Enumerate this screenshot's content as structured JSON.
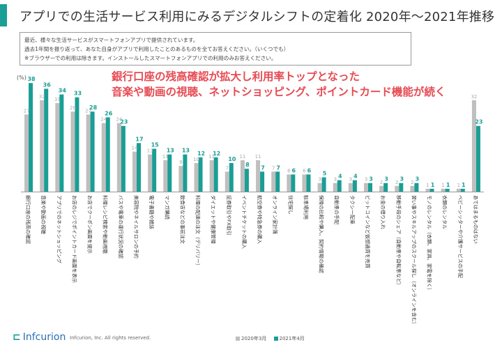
{
  "title": "アプリでの生活サービス利用にみるデジタルシフトの定着化  2020年〜2021年推移",
  "note_lines": [
    "最近、様々な生活サービスがスマートフォンアプリで提供されています。",
    "過去1年間を振り返って、あなた自身がアプリで利用したことのあるものを全てお答えください。（いくつでも）",
    "※ブラウザーでの利用は除きます。インストールしたスマートフォンアプリでの利用のみお答えください。"
  ],
  "headline_lines": [
    "銀行口座の残高確認が拡大し利用率トップとなった",
    "音楽や動画の視聴、ネットショッピング、ポイントカード機能が続く"
  ],
  "colors": {
    "accent": "#1a9e95",
    "series_2020": "#bfbfbf",
    "series_2021": "#1a9e95",
    "headline": "#e64b53"
  },
  "legend_2020": "2020年3月",
  "legend_2021": "2021年4月",
  "footer_logo": "Infcurion",
  "footer_copyright": "Infcurion, Inc.  All rights reserved.",
  "chart_data": {
    "type": "bar",
    "ylabel": "(%)",
    "ylim": [
      0,
      40
    ],
    "grid": false,
    "legend": "bottom",
    "categories": [
      "銀行口座の残高の確認",
      "音楽や動画の視聴",
      "アプリでのネットショッピング",
      "お店のレジでポイントカード画面を表示",
      "お店でクーポン画面を提示",
      "料理レシピ検索や動画視聴",
      "バスや電車の運行状況の確認",
      "美容院やネイルサロンの予約",
      "電子書籍や雑誌",
      "マンガ購読",
      "飲食店などの事前注文",
      "料理の配達の注文（デリバリー）",
      "ダイエットや健康管理",
      "証券取引やFX取引",
      "イベントチケットの購入",
      "航空券や特急券の購入",
      "オンライン家計簿",
      "住宅探し",
      "駐車場利用",
      "保険の比較や購入、契約情報の確認",
      "自動車の手配",
      "タクシー配車",
      "ビットコインなど仮想通貨を売買",
      "お金の借り入れ",
      "移動手段のシェア（自動車や自転車など）",
      "習い事やスキルアップのスクール探し（オンラインを含む）",
      "モノのレンタル（衣類、家具、家電を除く）",
      "衣類のレンタル",
      "ベビーシッターや介護サービスの手配",
      "あてはまるものはない"
    ],
    "series": [
      {
        "name": "2020年3月",
        "values": [
          27,
          32,
          31,
          28,
          27,
          24,
          24,
          14,
          13,
          11,
          9,
          10,
          11,
          7,
          11,
          11,
          7,
          6,
          6,
          3,
          3,
          3,
          3,
          2,
          2,
          2,
          1,
          1,
          1,
          32
        ]
      },
      {
        "name": "2021年4月",
        "values": [
          38,
          36,
          34,
          33,
          28,
          26,
          23,
          17,
          15,
          13,
          13,
          12,
          12,
          10,
          8,
          7,
          7,
          6,
          6,
          5,
          4,
          4,
          3,
          3,
          3,
          3,
          1,
          1,
          1,
          23
        ]
      }
    ]
  }
}
